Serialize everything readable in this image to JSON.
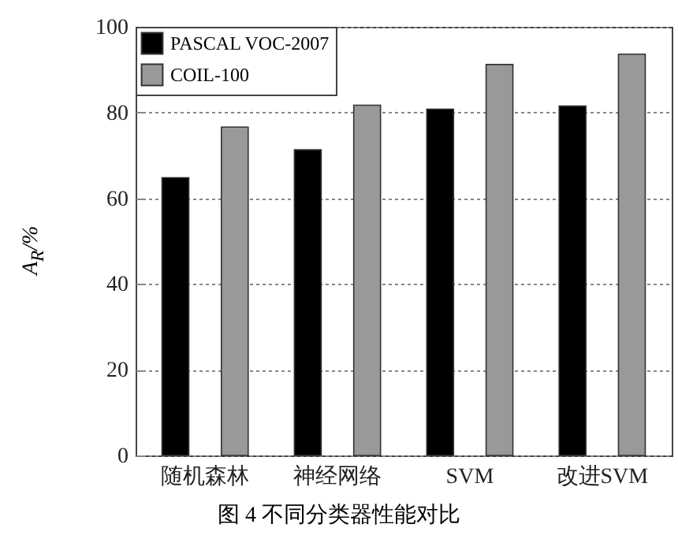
{
  "chart_data": {
    "type": "bar",
    "title": "图 4  不同分类器性能对比",
    "ylabel": "A$_{R}$/%",
    "categories": [
      "随机森林",
      "神经网络",
      "SVM",
      "改进SVM"
    ],
    "series": [
      {
        "name": "PASCAL VOC-2007",
        "color": "#000000",
        "values": [
          64.8,
          71.3,
          80.8,
          81.5
        ]
      },
      {
        "name": "COIL-100",
        "color": "#999999",
        "values": [
          76.6,
          81.7,
          91.2,
          93.6
        ]
      }
    ],
    "ylim": [
      0,
      100
    ],
    "yticks": [
      0,
      20,
      40,
      60,
      80,
      100
    ],
    "grid": "y",
    "legend": "top left"
  }
}
